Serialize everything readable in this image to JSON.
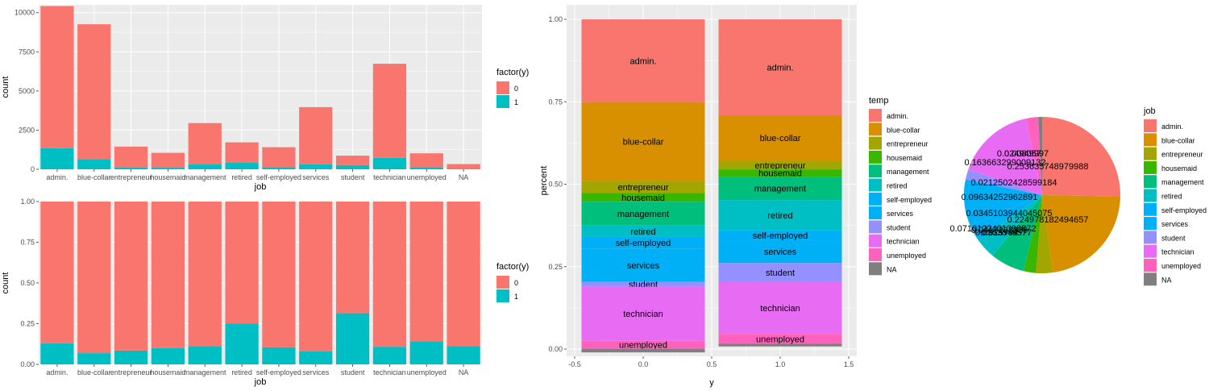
{
  "colors": {
    "panel_bg": "#EBEBEB",
    "grid": "#FFFFFF",
    "tick_text": "#4D4D4D",
    "axis_title": "#000000",
    "y0": "#F8766D",
    "y1": "#00BFC4"
  },
  "chart_data": [
    {
      "type": "bar",
      "stacked": true,
      "xlabel": "job",
      "ylabel": "count",
      "ylim": [
        0,
        10500
      ],
      "yticks": [
        0,
        2500,
        5000,
        7500,
        10000
      ],
      "ytick_labels": [
        "0",
        "2500",
        "5000",
        "7500",
        "10000"
      ],
      "grid": true,
      "categories": [
        "admin.",
        "blue-collar",
        "entrepreneur",
        "housemaid",
        "management",
        "retired",
        "self-employed",
        "services",
        "student",
        "technician",
        "unemployed",
        "NA"
      ],
      "legend": {
        "title": "factor(y)",
        "entries": [
          "0",
          "1"
        ],
        "placement": "right"
      },
      "series": [
        {
          "name": "0",
          "color": "#F8766D",
          "values": [
            9070,
            8620,
            1330,
            950,
            2620,
            1290,
            1270,
            3650,
            600,
            6010,
            880,
            290
          ]
        },
        {
          "name": "1",
          "color": "#00BFC4",
          "values": [
            1350,
            640,
            120,
            100,
            330,
            430,
            140,
            320,
            270,
            730,
            140,
            40
          ]
        }
      ]
    },
    {
      "type": "bar",
      "stacked": true,
      "xlabel": "job",
      "ylabel": "count",
      "ylim": [
        0,
        1.0
      ],
      "yticks": [
        0,
        0.25,
        0.5,
        0.75,
        1.0
      ],
      "ytick_labels": [
        "0.00",
        "0.25",
        "0.50",
        "0.75",
        "1.00"
      ],
      "grid": true,
      "categories": [
        "admin.",
        "blue-collar",
        "entrepreneur",
        "housemaid",
        "management",
        "retired",
        "self-employed",
        "services",
        "student",
        "technician",
        "unemployed",
        "NA"
      ],
      "legend": {
        "title": "factor(y)",
        "entries": [
          "0",
          "1"
        ],
        "placement": "right"
      },
      "series": [
        {
          "name": "0",
          "color": "#F8766D",
          "values": [
            0.87,
            0.931,
            0.915,
            0.9,
            0.888,
            0.748,
            0.895,
            0.919,
            0.686,
            0.892,
            0.858,
            0.888
          ]
        },
        {
          "name": "1",
          "color": "#00BFC4",
          "values": [
            0.13,
            0.069,
            0.085,
            0.1,
            0.112,
            0.252,
            0.105,
            0.081,
            0.314,
            0.108,
            0.142,
            0.112
          ]
        }
      ]
    },
    {
      "type": "bar",
      "stacked": true,
      "xlabel": "y",
      "ylabel": "percent",
      "ylim": [
        0,
        1.0
      ],
      "yticks": [
        0,
        0.25,
        0.5,
        0.75,
        1.0
      ],
      "ytick_labels": [
        "0.00",
        "0.25",
        "0.50",
        "0.75",
        "1.00"
      ],
      "xlim": [
        -0.5,
        1.5
      ],
      "xticks": [
        -0.5,
        0.0,
        0.5,
        1.0,
        1.5
      ],
      "xtick_labels": [
        "-0.5",
        "0.0",
        "0.5",
        "1.0",
        "1.5"
      ],
      "x": [
        0,
        1
      ],
      "grid": true,
      "legend": {
        "title": "temp",
        "placement": "right"
      },
      "series": [
        {
          "name": "admin.",
          "color": "#F8766D",
          "values": [
            0.251,
            0.291
          ]
        },
        {
          "name": "blue-collar",
          "color": "#D89000",
          "values": [
            0.239,
            0.138
          ]
        },
        {
          "name": "entrepreneur",
          "color": "#A3A500",
          "values": [
            0.037,
            0.026
          ]
        },
        {
          "name": "housemaid",
          "color": "#39B600",
          "values": [
            0.026,
            0.022
          ]
        },
        {
          "name": "management",
          "color": "#00BF7D",
          "values": [
            0.072,
            0.071
          ]
        },
        {
          "name": "retired",
          "color": "#00BFC4",
          "values": [
            0.035,
            0.092
          ]
        },
        {
          "name": "self-employed",
          "color": "#00B0F6",
          "values": [
            0.035,
            0.03
          ]
        },
        {
          "name": "services",
          "color": "#00B0F6",
          "values": [
            0.101,
            0.069
          ]
        },
        {
          "name": "student",
          "color": "#9590FF",
          "values": [
            0.015,
            0.058
          ]
        },
        {
          "name": "technician",
          "color": "#E76BF3",
          "values": [
            0.164,
            0.157
          ]
        },
        {
          "name": "unemployed",
          "color": "#FF62BC",
          "values": [
            0.024,
            0.03
          ]
        },
        {
          "name": "NA",
          "color": "#7F7F7F",
          "values": [
            0.011,
            0.008
          ]
        }
      ]
    },
    {
      "type": "pie",
      "legend": {
        "title": "job",
        "placement": "right"
      },
      "slices": [
        {
          "name": "admin.",
          "value": 0.253,
          "color": "#F8766D"
        },
        {
          "name": "blue-collar",
          "value": 0.225,
          "color": "#D89000"
        },
        {
          "name": "entrepreneur",
          "value": 0.035,
          "color": "#A3A500"
        },
        {
          "name": "housemaid",
          "value": 0.026,
          "color": "#39B600"
        },
        {
          "name": "management",
          "value": 0.071,
          "color": "#00BF7D"
        },
        {
          "name": "retired",
          "value": 0.042,
          "color": "#00BFC4"
        },
        {
          "name": "self-employed",
          "value": 0.035,
          "color": "#00B0F6"
        },
        {
          "name": "services",
          "value": 0.096,
          "color": "#00B0F6"
        },
        {
          "name": "student",
          "value": 0.021,
          "color": "#9590FF"
        },
        {
          "name": "technician",
          "value": 0.164,
          "color": "#E76BF3"
        },
        {
          "name": "unemployed",
          "value": 0.025,
          "color": "#FF62BC"
        },
        {
          "name": "NA",
          "value": 0.008,
          "color": "#7F7F7F"
        }
      ],
      "slice_labels": [
        "0.253635748979988",
        "0.224978182494657",
        "0.0353549577",
        "0.025754",
        "0.0710122401398872",
        "0.0417233339",
        "0.0345103944045075",
        "0.09634252962891",
        "0.0212502428599184",
        "0.163663299009132",
        "0.024949997",
        "0.008057"
      ]
    }
  ]
}
